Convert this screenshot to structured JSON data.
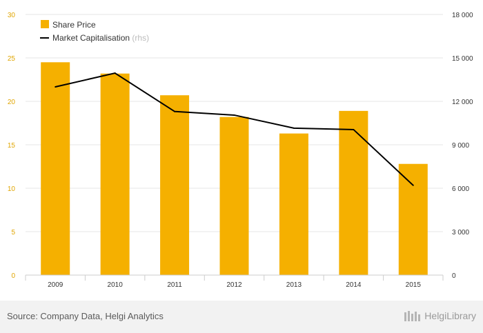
{
  "chart_data": {
    "type": "bar",
    "categories": [
      "2009",
      "2010",
      "2011",
      "2012",
      "2013",
      "2014",
      "2015"
    ],
    "series": [
      {
        "name": "Share Price",
        "type": "bar",
        "axis": "left",
        "color": "#f5b000",
        "values": [
          24.5,
          23.2,
          20.7,
          18.2,
          16.3,
          18.9,
          12.8
        ]
      },
      {
        "name": "Market Capitalisation",
        "name_suffix": "(rhs)",
        "type": "line",
        "axis": "right",
        "color": "#000000",
        "values": [
          13000,
          13950,
          11300,
          11050,
          10150,
          10050,
          6200
        ]
      }
    ],
    "y_left": {
      "range": [
        0,
        30
      ],
      "ticks": [
        "0",
        "5",
        "10",
        "15",
        "20",
        "25",
        "30"
      ],
      "tick_color": "#e0a500"
    },
    "y_right": {
      "range": [
        0,
        18000
      ],
      "ticks": [
        "0",
        "3 000",
        "6 000",
        "9 000",
        "12 000",
        "15 000",
        "18 000"
      ]
    },
    "grid": true,
    "legend_position": "top-left"
  },
  "footer": {
    "source": "Source: Company Data, Helgi Analytics",
    "brand": "HelgiLibrary"
  }
}
